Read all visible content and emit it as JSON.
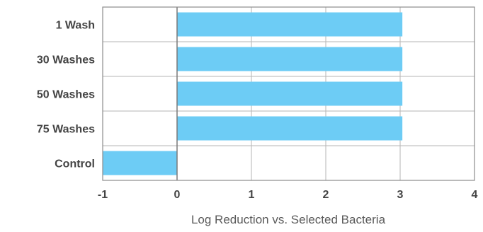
{
  "chart_data": {
    "type": "bar",
    "orientation": "horizontal",
    "categories": [
      "1 Wash",
      "30 Washes",
      "50 Washes",
      "75 Washes",
      "Control"
    ],
    "values": [
      3.03,
      3.03,
      3.03,
      3.03,
      -1
    ],
    "title": "",
    "xlabel": "Log Reduction vs. Selected Bacteria",
    "ylabel": "",
    "xlim": [
      -1,
      4
    ],
    "xticks": [
      -1,
      0,
      1,
      2,
      3,
      4
    ],
    "xtick_labels": [
      "-1",
      "0",
      "1",
      "2",
      "3",
      "4"
    ],
    "grid": "vertical",
    "legend": "none",
    "bar_color": "#6dccf5",
    "grid_color": "#b5b5b5",
    "border_color": "#8c8c8c",
    "zero_line_color": "#7a7a7a",
    "text_color": "#444444"
  }
}
